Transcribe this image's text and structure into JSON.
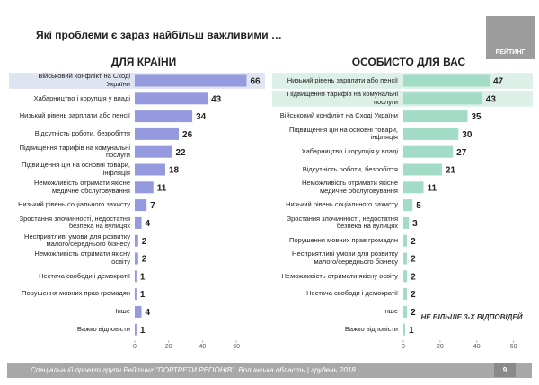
{
  "title": "Які проблеми є зараз найбільш важливими …",
  "logo": "РЕЙТИНГ",
  "footer": "Спеціальний проект групи Рейтинг \"ПОРТРЕТИ РЕГІОНІВ\". Волинська область | грудень 2018",
  "page_number": "9",
  "chart_data": [
    {
      "type": "bar",
      "orientation": "horizontal",
      "title": "ДЛЯ КРАЇНИ",
      "categories": [
        "Військовий конфлікт на Сході України",
        "Хабарництво і корупція у владі",
        "Низький рівень зарплати або пенсії",
        "Відсутність роботи, безробіття",
        "Підвищення тарифів на комунальні послуги",
        "Підвищення цін на основні товари, інфляція",
        "Неможливість отримати якісне медичне обслуговування",
        "Низький рівень соціального захисту",
        "Зростання злочинності, недостатня безпека на вулицях",
        "Несприятливі умови для розвитку малого/середнього бізнесу",
        "Неможливість отримати якісну освіту",
        "Нестача свободи і демократії",
        "Порушення мовних прав громадян",
        "Інше",
        "Важко відповісти"
      ],
      "values": [
        66,
        43,
        34,
        26,
        22,
        18,
        11,
        7,
        4,
        2,
        2,
        1,
        1,
        4,
        1
      ],
      "color": "#9599de",
      "xlim": [
        0,
        70
      ],
      "xticks": [
        0,
        20,
        40,
        60
      ]
    },
    {
      "type": "bar",
      "orientation": "horizontal",
      "title": "ОСОБИСТО ДЛЯ ВАС",
      "categories": [
        "Низький рівень зарплати або пенсії",
        "Підвищення тарифів на комунальні послуги",
        "Військовий конфлікт на Сході України",
        "Підвищення цін на основні товари, інфляція",
        "Хабарництво і корупція у владі",
        "Відсутність роботи, безробіття",
        "Неможливість отримати якісне медичне обслуговування",
        "Низький рівень соціального захисту",
        "Зростання злочинності, недостатня безпека на вулицях",
        "Порушення мовних прав громадян",
        "Несприятливі умови для розвитку малого/середнього бізнесу",
        "Неможливість отримати якісну освіту",
        "Нестача свободи і демократії",
        "Інше",
        "Важко відповісти"
      ],
      "values": [
        47,
        43,
        35,
        30,
        27,
        21,
        11,
        5,
        3,
        2,
        2,
        2,
        2,
        2,
        1
      ],
      "color": "#a2dcc6",
      "xlim": [
        0,
        70
      ],
      "xticks": [
        0,
        20,
        40,
        60
      ],
      "annotation": "НЕ БІЛЬШЕ 3-Х ВІДПОВІДЕЙ"
    }
  ]
}
